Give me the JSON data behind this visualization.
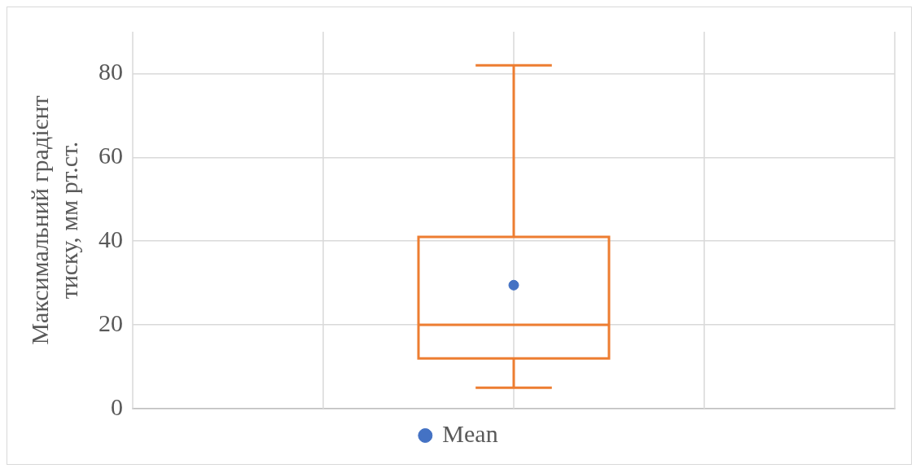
{
  "chart_data": {
    "type": "box",
    "ylabel": "Максимальний градієнт тиску, мм рт.ст.",
    "categories": [
      null
    ],
    "series": [
      {
        "color": "#ed7d31",
        "boxes": [
          {
            "low": 5,
            "q1": 12,
            "median": 20,
            "q3": 41,
            "high": 82
          }
        ]
      },
      {
        "type": "scatter",
        "name": "Mean",
        "color": "#4472c4",
        "values": [
          29.5
        ]
      }
    ],
    "ylim": [
      0,
      90
    ],
    "yticks": [
      0,
      20,
      40,
      60,
      80
    ],
    "grid": true,
    "legend": "bottom",
    "marker": "circle"
  }
}
